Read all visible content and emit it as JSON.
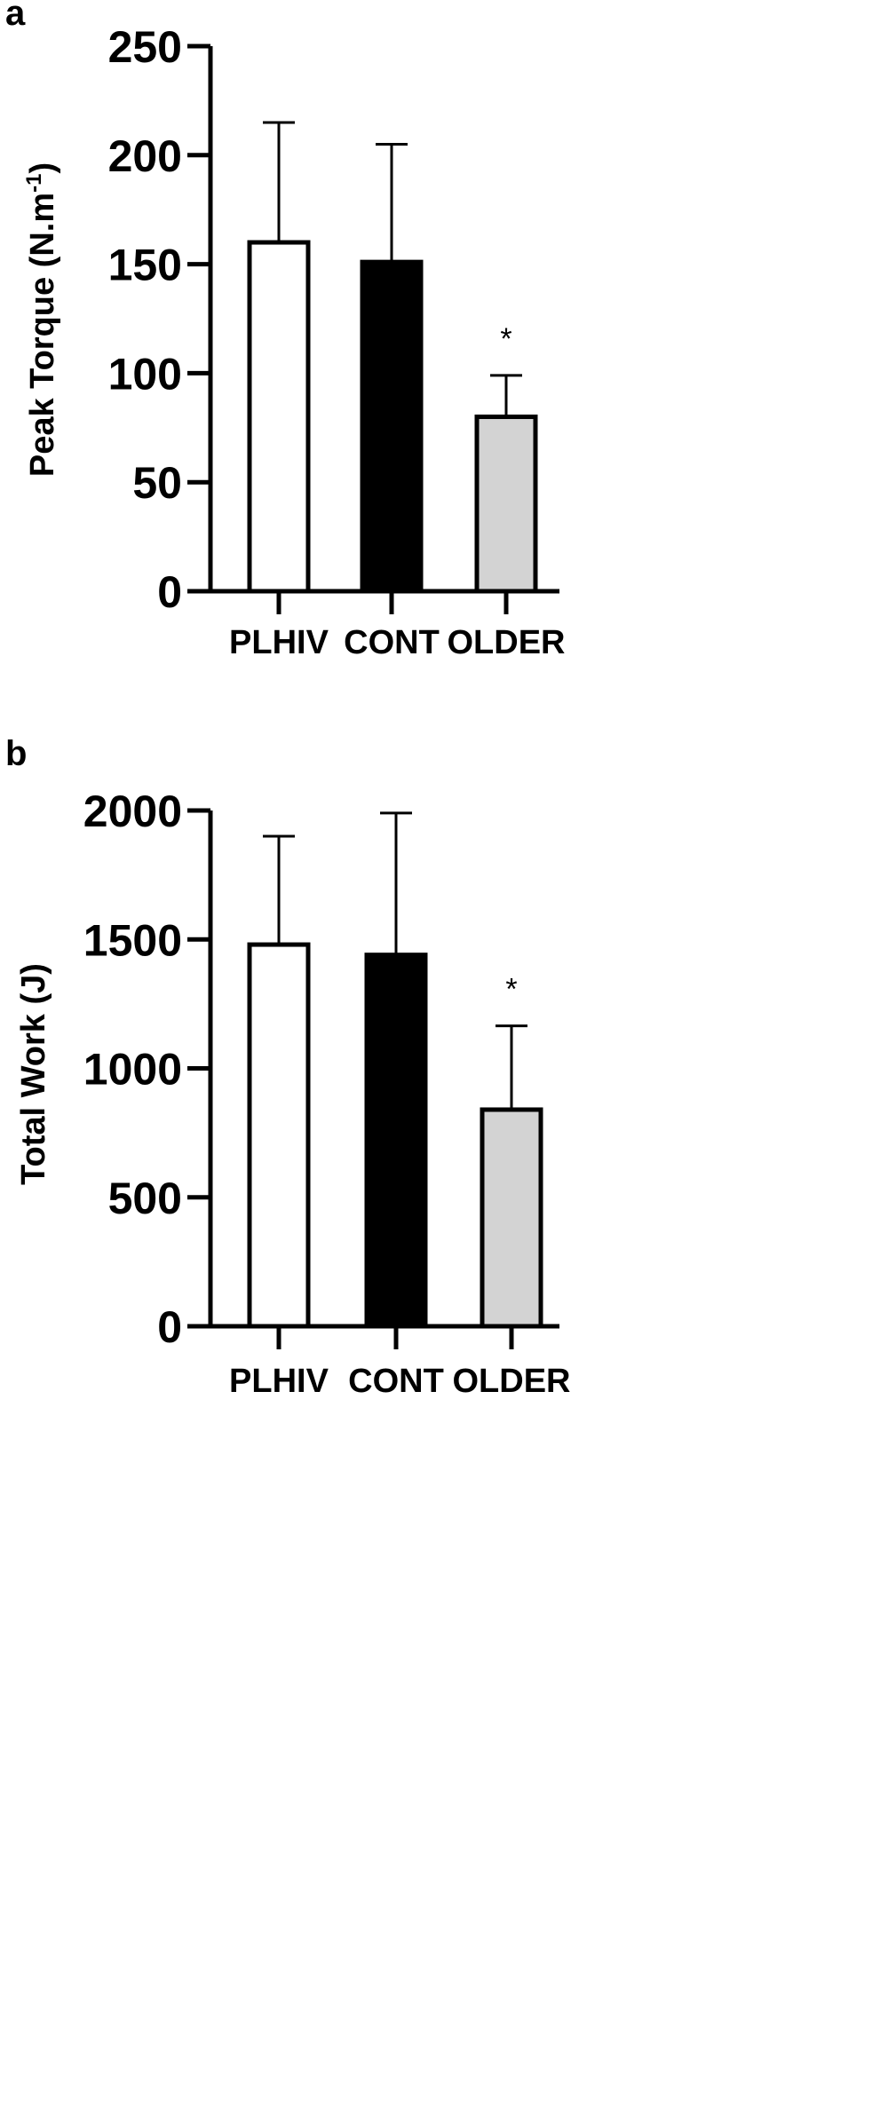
{
  "chart_data": [
    {
      "type": "bar",
      "panel_label": "a",
      "title": "",
      "xlabel": "",
      "ylabel": "Peak Torque (N.m",
      "ylabel_superscript": "-1",
      "ylabel_close": ")",
      "ylim": [
        0,
        250
      ],
      "yticks": [
        0,
        50,
        100,
        150,
        200,
        250
      ],
      "ytick_labels": [
        "0",
        "50",
        "100",
        "150",
        "200",
        "250"
      ],
      "categories": [
        "PLHIV",
        "CONT",
        "OLDER"
      ],
      "values": [
        160,
        151,
        80
      ],
      "error_upper": [
        215,
        205,
        99
      ],
      "bar_fills": [
        "#ffffff",
        "#000000",
        "#d3d3d3"
      ],
      "significance": [
        "",
        "",
        "*"
      ],
      "grid": false
    },
    {
      "type": "bar",
      "panel_label": "b",
      "title": "",
      "xlabel": "",
      "ylabel": "Total Work (J)",
      "ylim": [
        0,
        2000
      ],
      "yticks": [
        0,
        500,
        1000,
        1500,
        2000
      ],
      "ytick_labels": [
        "0",
        "500",
        "1000",
        "1500",
        "2000"
      ],
      "categories": [
        "PLHIV",
        "CONT",
        "OLDER"
      ],
      "values": [
        1480,
        1440,
        840
      ],
      "error_upper": [
        1900,
        1990,
        1165
      ],
      "bar_fills": [
        "#ffffff",
        "#000000",
        "#d3d3d3"
      ],
      "significance": [
        "",
        "",
        "*"
      ],
      "grid": false
    }
  ]
}
